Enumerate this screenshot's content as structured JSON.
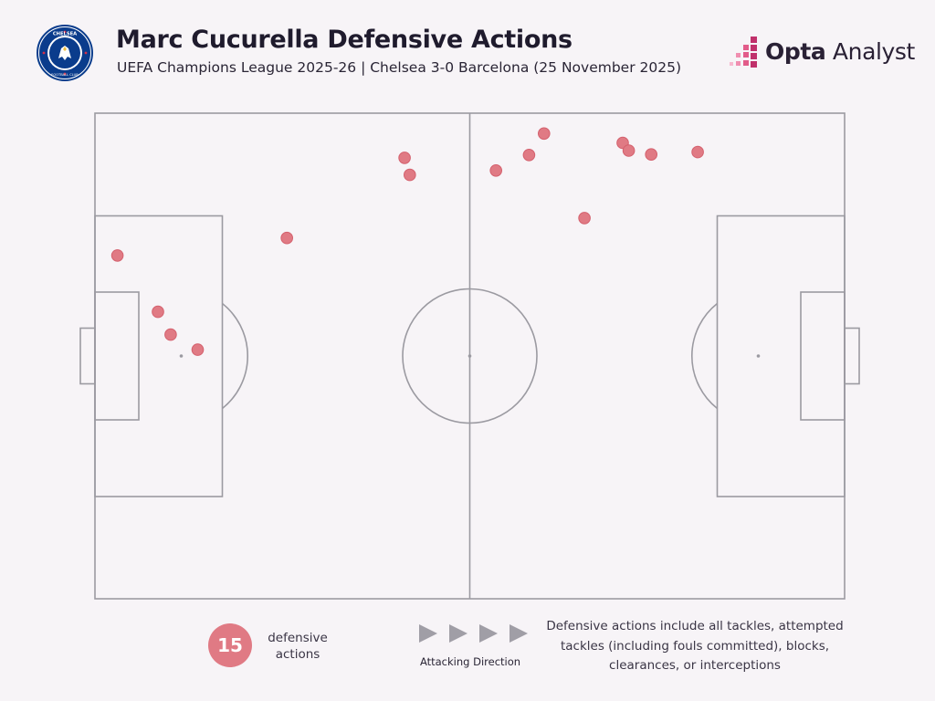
{
  "header": {
    "title": "Marc Cucurella Defensive Actions",
    "subtitle": "UEFA Champions League 2025-26 | Chelsea 3-0 Barcelona (25 November 2025)",
    "crest_text_top": "CHELSEA",
    "crest_text_bottom": "FOOTBALL CLUB"
  },
  "brand": {
    "name_bold": "Opta",
    "name_regular": " Analyst"
  },
  "colors": {
    "background": "#f7f4f7",
    "pitch_lines": "#9b9aa1",
    "marker": "#e07a84",
    "marker_stroke": "#d4606d",
    "crest_blue": "#0a3c8c",
    "brand_accent": "#c0306b"
  },
  "legend": {
    "count": "15",
    "count_label": "defensive actions",
    "direction_label": "Attacking Direction",
    "note": "Defensive actions include all tackles, attempted tackles (including fouls committed), blocks, clearances, or interceptions"
  },
  "chart_data": {
    "type": "scatter",
    "title": "Marc Cucurella Defensive Actions",
    "xlabel": "",
    "ylabel": "",
    "x_range": [
      0,
      100
    ],
    "y_range": [
      0,
      100
    ],
    "attacking_direction": "left-to-right",
    "grid": false,
    "points": [
      {
        "x": 3.0,
        "y": 29.3
      },
      {
        "x": 8.4,
        "y": 40.9
      },
      {
        "x": 10.1,
        "y": 45.6
      },
      {
        "x": 13.7,
        "y": 48.7
      },
      {
        "x": 25.6,
        "y": 25.7
      },
      {
        "x": 41.3,
        "y": 9.2
      },
      {
        "x": 42.0,
        "y": 12.7
      },
      {
        "x": 53.5,
        "y": 11.8
      },
      {
        "x": 57.9,
        "y": 8.6
      },
      {
        "x": 59.9,
        "y": 4.2
      },
      {
        "x": 65.3,
        "y": 21.6
      },
      {
        "x": 70.4,
        "y": 6.1
      },
      {
        "x": 71.2,
        "y": 7.7
      },
      {
        "x": 74.2,
        "y": 8.5
      },
      {
        "x": 80.4,
        "y": 8.0
      }
    ]
  }
}
